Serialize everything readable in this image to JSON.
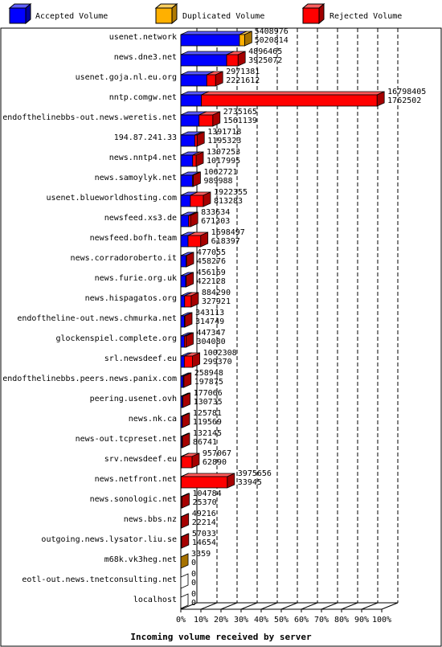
{
  "colors": {
    "accepted": "#0000ff",
    "duplicated": "#ffb000",
    "rejected": "#ff0000",
    "grid": "#000000",
    "background": "#ffffff"
  },
  "legend": {
    "accepted": "Accepted Volume",
    "duplicated": "Duplicated Volume",
    "rejected": "Rejected Volume"
  },
  "chart_data": {
    "type": "bar",
    "orientation": "horizontal",
    "stacked": true,
    "title": "",
    "xlabel": "Incoming volume received by server",
    "ylabel": "",
    "xlim": [
      0,
      100
    ],
    "grid": true,
    "legend_position": "top",
    "x_ticks": [
      "0%",
      "10%",
      "20%",
      "30%",
      "40%",
      "50%",
      "60%",
      "70%",
      "80%",
      "90%",
      "100%"
    ],
    "categories": [
      "usenet.network",
      "news.dne3.net",
      "usenet.goja.nl.eu.org",
      "nntp.comgw.net",
      "endofthelinebbs-out.news.weretis.net",
      "194.87.241.33",
      "news.nntp4.net",
      "news.samoylyk.net",
      "usenet.blueworldhosting.com",
      "newsfeed.xs3.de",
      "newsfeed.bofh.team",
      "news.corradoroberto.it",
      "news.furie.org.uk",
      "news.hispagatos.org",
      "endoftheline-out.news.chmurka.net",
      "glockenspiel.complete.org",
      "srl.newsdeef.eu",
      "endofthelinebbs.peers.news.panix.com",
      "peering.usenet.ovh",
      "news.nk.ca",
      "news-out.tcpreset.net",
      "srv.newsdeef.eu",
      "news.netfront.net",
      "news.sonologic.net",
      "news.bbs.nz",
      "outgoing.news.lysator.liu.se",
      "m68k.vk3heg.net",
      "eotl-out.news.tnetconsulting.net",
      "localhost"
    ],
    "total_volume": [
      5408976,
      4896465,
      2971381,
      16798405,
      2735165,
      1391718,
      1307253,
      1062721,
      1922355,
      833634,
      1698497,
      477055,
      456169,
      884290,
      343113,
      447347,
      1002308,
      258948,
      177066,
      125781,
      132145,
      957067,
      3975656,
      104784,
      49216,
      57033,
      3359,
      0,
      0
    ],
    "accepted_volume": [
      5020814,
      3925072,
      2221612,
      1762502,
      1561139,
      1195323,
      1017995,
      989988,
      813283,
      671303,
      618397,
      458276,
      422128,
      327921,
      314749,
      304080,
      299370,
      197875,
      130735,
      119569,
      86741,
      62890,
      33945,
      25370,
      22214,
      14654,
      0,
      0,
      0
    ],
    "duplicated_volume": [
      440000,
      0,
      0,
      0,
      0,
      0,
      0,
      0,
      0,
      0,
      0,
      0,
      0,
      0,
      0,
      0,
      0,
      0,
      0,
      0,
      0,
      0,
      0,
      0,
      0,
      0,
      3359,
      0,
      0
    ],
    "scale_max": 17200000
  }
}
